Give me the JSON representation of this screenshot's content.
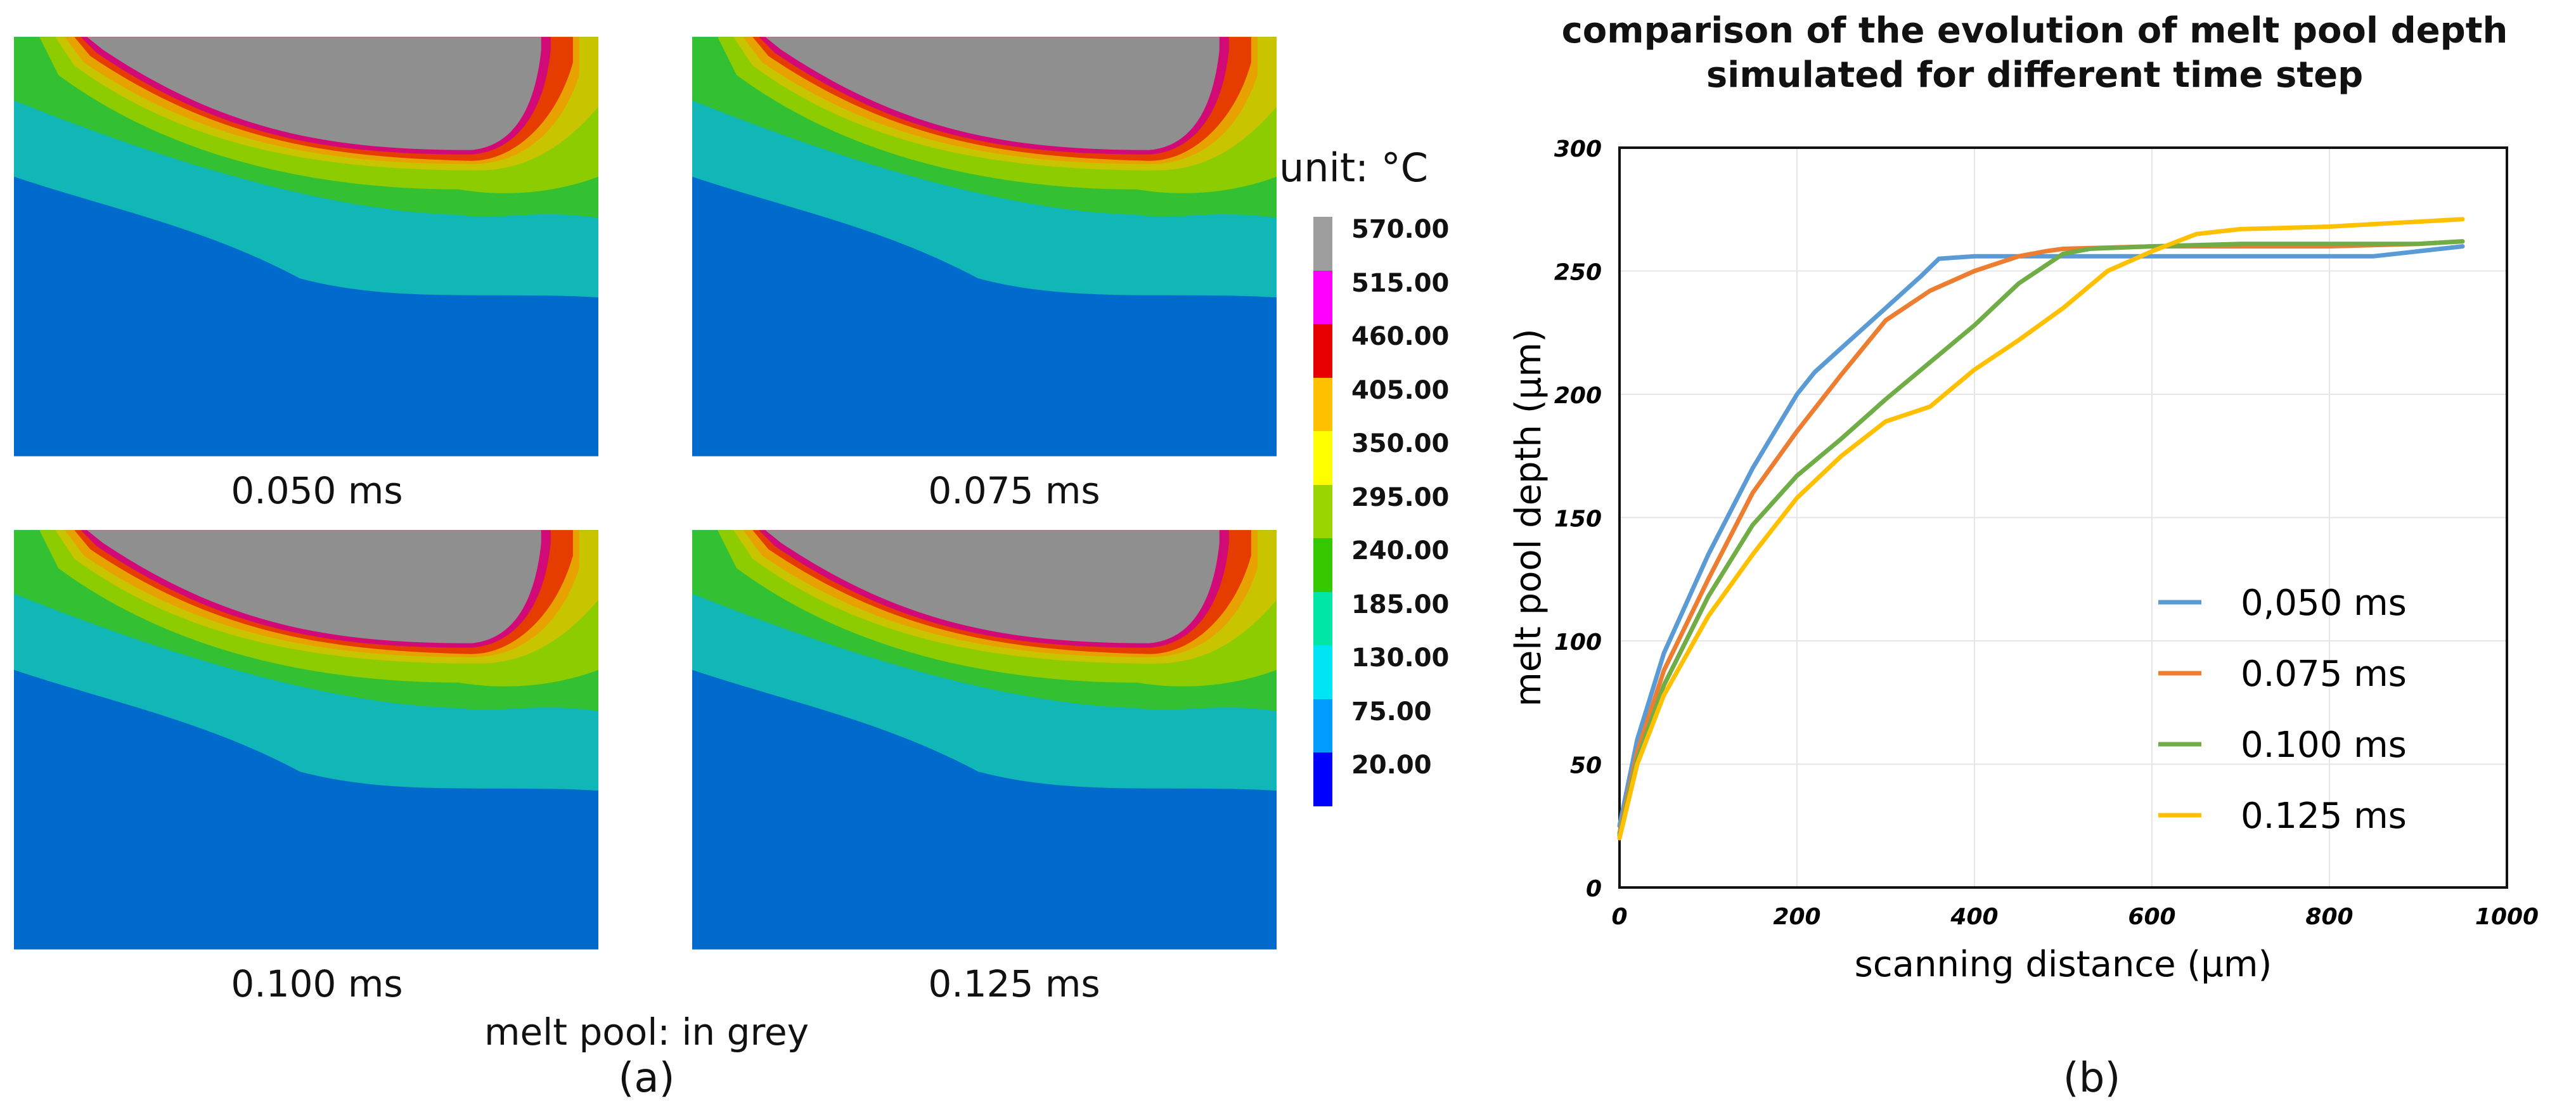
{
  "panel_a": {
    "label": "(a)",
    "note": "melt pool: in grey",
    "snapshots": [
      {
        "caption": "0.050 ms"
      },
      {
        "caption": "0.075 ms"
      },
      {
        "caption": "0.100 ms"
      },
      {
        "caption": "0.125 ms"
      }
    ],
    "colorbar": {
      "unit": "unit: °C",
      "levels": [
        "570.00",
        "515.00",
        "460.00",
        "405.00",
        "350.00",
        "295.00",
        "240.00",
        "185.00",
        "130.00",
        "75.00",
        "20.00"
      ],
      "colors": [
        "#9e9e9e",
        "#ff00ff",
        "#e60000",
        "#ffc000",
        "#ffff00",
        "#99d600",
        "#35c800",
        "#00e6a6",
        "#00e5f5",
        "#009dff",
        "#0000ff"
      ]
    },
    "zone_colors": {
      "melt_pool": "#8f8f8f",
      "edge_pink": "#d20a78",
      "red": "#e63c00",
      "orange": "#e8a200",
      "yellow": "#c8c400",
      "light_green": "#8ccc00",
      "green": "#33c133",
      "teal": "#11b6b6",
      "blue": "#006bcc"
    }
  },
  "panel_b": {
    "label": "(b)"
  },
  "chart_data": {
    "type": "line",
    "title": "comparison of the evolution of melt pool depth simulated for different time step",
    "title_lines": [
      "comparison of the evolution of melt pool depth",
      "simulated for different time step"
    ],
    "xlabel": "scanning distance (μm)",
    "ylabel": "melt pool depth (μm)",
    "xlim": [
      0,
      1000
    ],
    "ylim": [
      0,
      300
    ],
    "xticks": [
      "0",
      "200",
      "400",
      "600",
      "800",
      "1000"
    ],
    "yticks": [
      "0",
      "50",
      "100",
      "150",
      "200",
      "250",
      "300"
    ],
    "grid": true,
    "legend_position": "bottom-right",
    "series": [
      {
        "name": "0,050 ms",
        "color": "#5b9bd5",
        "x": [
          0,
          20,
          50,
          100,
          150,
          200,
          220,
          260,
          300,
          340,
          360,
          400,
          500,
          600,
          700,
          800,
          850,
          900,
          950
        ],
        "y": [
          25,
          60,
          95,
          135,
          170,
          200,
          209,
          222,
          235,
          248,
          255,
          256,
          256,
          256,
          256,
          256,
          256,
          258,
          260
        ]
      },
      {
        "name": "0.075 ms",
        "color": "#ed7d31",
        "x": [
          0,
          20,
          50,
          100,
          150,
          200,
          250,
          300,
          350,
          400,
          450,
          480,
          500,
          600,
          700,
          800,
          900,
          950
        ],
        "y": [
          22,
          55,
          88,
          125,
          160,
          185,
          208,
          230,
          242,
          250,
          256,
          258,
          259,
          260,
          260,
          260,
          261,
          262
        ]
      },
      {
        "name": "0.100 ms",
        "color": "#70ad47",
        "x": [
          0,
          20,
          50,
          100,
          150,
          200,
          250,
          300,
          350,
          400,
          450,
          500,
          530,
          600,
          700,
          800,
          900,
          950
        ],
        "y": [
          21,
          52,
          82,
          118,
          147,
          167,
          182,
          198,
          213,
          228,
          245,
          257,
          259,
          260,
          261,
          261,
          261,
          262
        ]
      },
      {
        "name": "0.125 ms",
        "color": "#ffc000",
        "x": [
          0,
          20,
          50,
          100,
          150,
          200,
          250,
          300,
          350,
          400,
          450,
          500,
          550,
          600,
          650,
          700,
          800,
          900,
          950
        ],
        "y": [
          20,
          50,
          78,
          110,
          135,
          158,
          175,
          189,
          195,
          210,
          222,
          235,
          250,
          258,
          265,
          267,
          268,
          270,
          271
        ]
      }
    ]
  }
}
